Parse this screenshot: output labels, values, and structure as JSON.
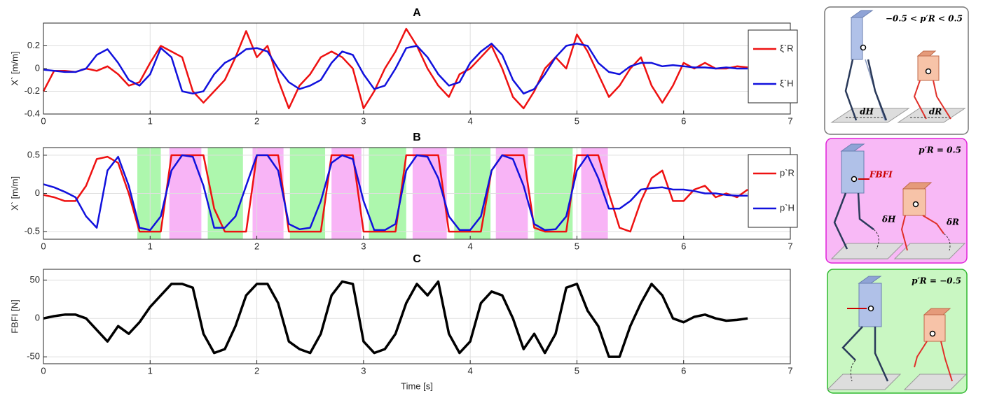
{
  "chart_data": [
    {
      "type": "line",
      "title": "A",
      "ylabel": "X` [m/m]",
      "x": [
        0,
        0.1,
        0.2,
        0.3,
        0.4,
        0.5,
        0.6,
        0.7,
        0.8,
        0.9,
        1,
        1.1,
        1.2,
        1.3,
        1.4,
        1.5,
        1.6,
        1.7,
        1.8,
        1.9,
        2,
        2.1,
        2.2,
        2.3,
        2.4,
        2.5,
        2.6,
        2.7,
        2.8,
        2.9,
        3,
        3.1,
        3.2,
        3.3,
        3.4,
        3.5,
        3.6,
        3.7,
        3.8,
        3.9,
        4,
        4.1,
        4.2,
        4.3,
        4.4,
        4.5,
        4.6,
        4.7,
        4.8,
        4.9,
        5,
        5.1,
        5.2,
        5.3,
        5.4,
        5.5,
        5.6,
        5.7,
        5.8,
        5.9,
        6,
        6.1,
        6.2,
        6.3,
        6.4,
        6.5,
        6.6
      ],
      "series": [
        {
          "name": "ξ`R",
          "color": "#ee1111",
          "values": [
            -0.2,
            -0.02,
            -0.02,
            -0.03,
            0,
            -0.02,
            0.02,
            -0.05,
            -0.15,
            -0.12,
            0.05,
            0.2,
            0.15,
            0.1,
            -0.2,
            -0.3,
            -0.2,
            -0.1,
            0.1,
            0.33,
            0.1,
            0.2,
            -0.1,
            -0.35,
            -0.15,
            -0.05,
            0.1,
            0.15,
            0.1,
            0,
            -0.35,
            -0.2,
            0,
            0.15,
            0.35,
            0.2,
            0,
            -0.15,
            -0.25,
            -0.05,
            0,
            0.1,
            0.2,
            0,
            -0.25,
            -0.35,
            -0.2,
            0,
            0.1,
            0,
            0.3,
            0.15,
            -0.05,
            -0.25,
            -0.15,
            0,
            0.1,
            -0.15,
            -0.3,
            -0.15,
            0.05,
            0,
            0.05,
            0,
            0,
            0.02,
            0.01
          ]
        },
        {
          "name": "ξ`H",
          "color": "#1111dd",
          "values": [
            -0.01,
            -0.02,
            -0.03,
            -0.03,
            0,
            0.12,
            0.17,
            0.05,
            -0.1,
            -0.15,
            -0.05,
            0.18,
            0.1,
            -0.2,
            -0.22,
            -0.2,
            -0.05,
            0.05,
            0.1,
            0.17,
            0.18,
            0.15,
            0,
            -0.12,
            -0.18,
            -0.15,
            -0.1,
            0.05,
            0.15,
            0.12,
            -0.05,
            -0.18,
            -0.15,
            0,
            0.18,
            0.2,
            0.1,
            -0.05,
            -0.15,
            -0.12,
            0.05,
            0.15,
            0.22,
            0.12,
            -0.1,
            -0.22,
            -0.18,
            -0.05,
            0.1,
            0.2,
            0.22,
            0.2,
            0.05,
            -0.03,
            -0.05,
            0.02,
            0.05,
            0.05,
            0.02,
            0.03,
            0.02,
            0.01,
            0.01,
            0,
            0.01,
            0,
            0
          ]
        }
      ],
      "xlim": [
        0,
        7
      ],
      "xticks": [
        0,
        1,
        2,
        3,
        4,
        5,
        6,
        7
      ],
      "ylim": [
        -0.4,
        0.4
      ],
      "yticks": [
        -0.4,
        -0.2,
        0,
        0.2
      ],
      "grid": true,
      "legend": "right"
    },
    {
      "type": "line",
      "title": "B",
      "ylabel": "X` [m/m]",
      "x": [
        0,
        0.1,
        0.2,
        0.3,
        0.4,
        0.5,
        0.6,
        0.7,
        0.8,
        0.9,
        1,
        1.1,
        1.2,
        1.3,
        1.4,
        1.5,
        1.6,
        1.7,
        1.8,
        1.9,
        2,
        2.1,
        2.2,
        2.3,
        2.4,
        2.5,
        2.6,
        2.7,
        2.8,
        2.9,
        3,
        3.1,
        3.2,
        3.3,
        3.4,
        3.5,
        3.6,
        3.7,
        3.8,
        3.9,
        4,
        4.1,
        4.2,
        4.3,
        4.4,
        4.5,
        4.6,
        4.7,
        4.8,
        4.9,
        5,
        5.1,
        5.2,
        5.3,
        5.4,
        5.5,
        5.6,
        5.7,
        5.8,
        5.9,
        6,
        6.1,
        6.2,
        6.3,
        6.4,
        6.5,
        6.6
      ],
      "series": [
        {
          "name": "p`R",
          "color": "#ee1111",
          "values": [
            -0.02,
            -0.05,
            -0.1,
            -0.1,
            0.1,
            0.45,
            0.48,
            0.4,
            0,
            -0.5,
            -0.5,
            -0.5,
            0.5,
            0.5,
            0.5,
            0.5,
            -0.2,
            -0.5,
            -0.5,
            -0.5,
            0.5,
            0.5,
            0.5,
            -0.5,
            -0.5,
            -0.5,
            -0.5,
            0.5,
            0.5,
            0.5,
            -0.5,
            -0.5,
            -0.5,
            -0.5,
            0.5,
            0.5,
            0.5,
            0.5,
            -0.5,
            -0.5,
            -0.5,
            -0.5,
            0.3,
            0.5,
            0.5,
            0.5,
            -0.45,
            -0.5,
            -0.5,
            -0.5,
            0.5,
            0.5,
            0.5,
            0,
            -0.45,
            -0.5,
            -0.1,
            0.2,
            0.3,
            -0.1,
            -0.1,
            0.05,
            0.1,
            -0.05,
            0,
            -0.05,
            0.05
          ]
        },
        {
          "name": "p`H",
          "color": "#1111dd",
          "values": [
            0.12,
            0.08,
            0.02,
            -0.05,
            -0.3,
            -0.45,
            0.3,
            0.48,
            0.1,
            -0.45,
            -0.48,
            -0.3,
            0.3,
            0.5,
            0.48,
            0.1,
            -0.45,
            -0.45,
            -0.3,
            0.1,
            0.5,
            0.5,
            0.3,
            -0.4,
            -0.47,
            -0.45,
            -0.1,
            0.4,
            0.5,
            0.45,
            -0.1,
            -0.48,
            -0.48,
            -0.4,
            0.3,
            0.5,
            0.48,
            0.2,
            -0.3,
            -0.48,
            -0.48,
            -0.3,
            0.3,
            0.5,
            0.45,
            0.1,
            -0.4,
            -0.48,
            -0.47,
            -0.3,
            0.3,
            0.5,
            0.2,
            -0.2,
            -0.2,
            -0.1,
            0.05,
            0.07,
            0.08,
            0.05,
            0.05,
            0.03,
            0,
            0,
            -0.02,
            -0.03,
            -0.03
          ]
        }
      ],
      "shaded": [
        {
          "color": "#adf7ad",
          "x": [
            [
              0.88,
              1.1
            ],
            [
              1.54,
              1.87
            ],
            [
              2.31,
              2.64
            ],
            [
              3.05,
              3.4
            ],
            [
              3.85,
              4.19
            ],
            [
              4.6,
              4.96
            ]
          ]
        },
        {
          "color": "#f8b4f6",
          "x": [
            [
              1.18,
              1.48
            ],
            [
              1.96,
              2.25
            ],
            [
              2.7,
              2.98
            ],
            [
              3.46,
              3.78
            ],
            [
              4.24,
              4.54
            ],
            [
              5.04,
              5.29
            ]
          ]
        }
      ],
      "xlim": [
        0,
        7
      ],
      "xticks": [
        0,
        1,
        2,
        3,
        4,
        5,
        6,
        7
      ],
      "ylim": [
        -0.6,
        0.6
      ],
      "yticks": [
        -0.5,
        0,
        0.5
      ],
      "grid": true,
      "legend": "right"
    },
    {
      "type": "line",
      "title": "C",
      "ylabel": "FBFI [N]",
      "xlabel": "Time [s]",
      "x": [
        0,
        0.1,
        0.2,
        0.3,
        0.4,
        0.5,
        0.6,
        0.7,
        0.8,
        0.9,
        1,
        1.1,
        1.2,
        1.3,
        1.4,
        1.5,
        1.6,
        1.7,
        1.8,
        1.9,
        2,
        2.1,
        2.2,
        2.3,
        2.4,
        2.5,
        2.6,
        2.7,
        2.8,
        2.9,
        3,
        3.1,
        3.2,
        3.3,
        3.4,
        3.5,
        3.6,
        3.7,
        3.8,
        3.9,
        4,
        4.1,
        4.2,
        4.3,
        4.4,
        4.5,
        4.6,
        4.7,
        4.8,
        4.9,
        5,
        5.1,
        5.2,
        5.3,
        5.4,
        5.5,
        5.6,
        5.7,
        5.8,
        5.9,
        6,
        6.1,
        6.2,
        6.3,
        6.4,
        6.5,
        6.6
      ],
      "series": [
        {
          "color": "#000000",
          "values": [
            0,
            3,
            5,
            5,
            0,
            -15,
            -30,
            -10,
            -20,
            -5,
            15,
            30,
            45,
            45,
            40,
            -20,
            -45,
            -40,
            -10,
            30,
            45,
            45,
            20,
            -30,
            -40,
            -45,
            -20,
            30,
            48,
            45,
            -30,
            -45,
            -40,
            -20,
            20,
            45,
            30,
            48,
            -20,
            -45,
            -30,
            20,
            35,
            30,
            0,
            -40,
            -20,
            -45,
            -20,
            40,
            45,
            10,
            -10,
            -50,
            -50,
            -10,
            20,
            45,
            30,
            0,
            -5,
            2,
            5,
            0,
            -3,
            -2,
            0
          ]
        }
      ],
      "xlim": [
        0,
        7
      ],
      "xticks": [
        0,
        1,
        2,
        3,
        4,
        5,
        6,
        7
      ],
      "ylim": [
        -59,
        64
      ],
      "yticks": [
        -50,
        0,
        50
      ],
      "grid": true
    }
  ],
  "diagrams": [
    {
      "label": "−0.5 < p′R < 0.5",
      "annotations": [
        "dH",
        "dR"
      ]
    },
    {
      "label": "p′R = 0.5",
      "annotations": [
        "FBFI",
        "δH",
        "δR"
      ]
    },
    {
      "label": "p′R = −0.5"
    }
  ]
}
